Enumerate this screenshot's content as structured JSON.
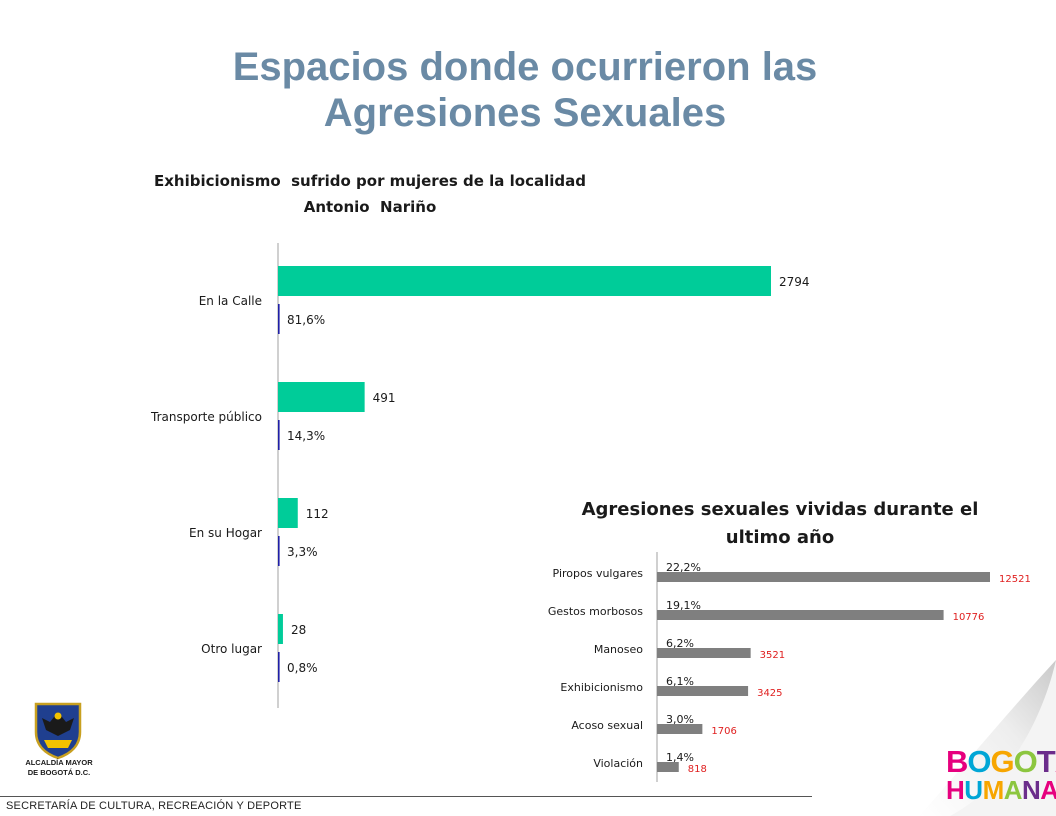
{
  "slide": {
    "title_line1": "Espacios donde ocurrieron las",
    "title_line2": "Agresiones Sexuales"
  },
  "footer": {
    "text": "SECRETARÍA DE CULTURA, RECREACIÓN Y DEPORTE",
    "logo_caption_line1": "ALCALDÍA MAYOR",
    "logo_caption_line2": "DE BOGOTÁ D.C.",
    "brand_line1": "BOGOTÁ",
    "brand_line2": "HUMANA"
  },
  "colors": {
    "title": "#6a8aa5",
    "count_bar": "#00cc99",
    "pct_bar": "#1f1fa6",
    "bar_gray": "#7f7f7f",
    "count_label_red": "#e02020",
    "brand_palette": [
      "#e6007e",
      "#00a6d6",
      "#f7a600",
      "#8cc63f",
      "#6b2d8b"
    ]
  },
  "chart_data": [
    {
      "type": "bar",
      "orientation": "horizontal",
      "title_line1": "Exhibicionismo  sufrido por mujeres de la localidad",
      "title_line2": "Antonio  Nariño",
      "categories": [
        "En la Calle",
        "Transporte público",
        "En su Hogar",
        "Otro lugar"
      ],
      "series": [
        {
          "values": [
            2794,
            491,
            112,
            28
          ],
          "labels": [
            "2794",
            "491",
            "112",
            "28"
          ],
          "color": "#00cc99"
        },
        {
          "values": [
            81.6,
            14.3,
            3.3,
            0.8
          ],
          "labels": [
            "81,6%",
            "14,3%",
            "3,3%",
            "0,8%"
          ],
          "color": "#1f1fa6"
        }
      ],
      "xlim": [
        0,
        2794
      ],
      "grid": false,
      "legend": false
    },
    {
      "type": "bar",
      "orientation": "horizontal",
      "title_line1": "Agresiones sexuales vividas durante el",
      "title_line2": "ultimo año",
      "categories": [
        "Piropos vulgares",
        "Gestos morbosos",
        "Manoseo",
        "Exhibicionismo",
        "Acoso sexual",
        "Violación"
      ],
      "values": [
        12521,
        10776,
        3521,
        3425,
        1706,
        818
      ],
      "value_labels": [
        "12521",
        "10776",
        "3521",
        "3425",
        "1706",
        "818"
      ],
      "percent_labels": [
        "22,2%",
        "19,1%",
        "6,2%",
        "6,1%",
        "3,0%",
        "1,4%"
      ],
      "xlim": [
        0,
        12521
      ],
      "grid": false,
      "legend": false
    }
  ]
}
